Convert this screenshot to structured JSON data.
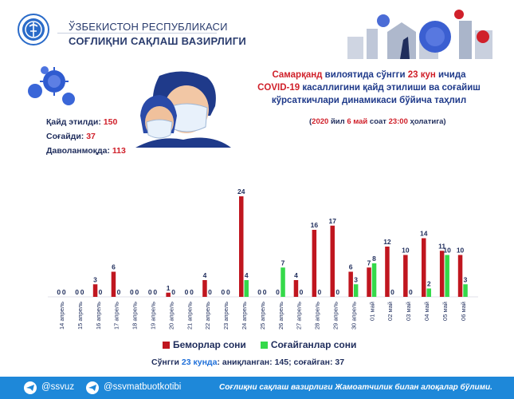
{
  "header": {
    "republic": "ЎЗБЕКИСТОН РЕСПУБЛИКАСИ",
    "ministry": "СОҒЛИҚНИ САҚЛАШ ВАЗИРЛИГИ",
    "emblem_icon": "ministry-emblem-icon",
    "art_icon": "coronavirus-city-illustration"
  },
  "stats": {
    "registered_label": "Қайд этилди:",
    "registered_value": "150",
    "recovered_label": "Соғайди:",
    "recovered_value": "37",
    "treated_label": "Даволанмоқда:",
    "treated_value": "113"
  },
  "title": {
    "region": "Самарқанд",
    "p1": " вилоятида сўнгги ",
    "days": "23 кун",
    "p2": " ичида",
    "covid": "COVID-19",
    "p3": " касаллигини қайд этилиши ва соғайиш",
    "line3": "кўрсаткичлари динамикаси бўйича таҳлил"
  },
  "date_line": {
    "open": "(",
    "year": "2020",
    "p1": " йил ",
    "day": "6 май",
    "p2": " соат ",
    "time": "23:00",
    "p3": " ҳолатига)"
  },
  "chart_data": {
    "type": "bar",
    "categories": [
      "14 апрель",
      "15 апрель",
      "16 апрель",
      "17 апрель",
      "18 апрель",
      "19 апрель",
      "20 апрель",
      "21 апрель",
      "22 апрель",
      "23 апрель",
      "24 апрель",
      "25 апрель",
      "26 апрель",
      "27 апрель",
      "28 апрель",
      "29 апрель",
      "30 апрель",
      "01 май",
      "02 май",
      "03 май",
      "04 май",
      "05 май",
      "06 май"
    ],
    "series": [
      {
        "name": "Беморлар сони",
        "color": "#c0161f",
        "values": [
          0,
          0,
          3,
          6,
          0,
          0,
          1,
          0,
          4,
          0,
          24,
          0,
          0,
          4,
          16,
          17,
          6,
          7,
          12,
          10,
          14,
          11,
          10
        ]
      },
      {
        "name": "Соғайганлар сони",
        "color": "#35d94a",
        "values": [
          0,
          0,
          0,
          0,
          0,
          0,
          0,
          0,
          0,
          0,
          4,
          0,
          7,
          0,
          0,
          0,
          3,
          8,
          0,
          0,
          2,
          10,
          3
        ]
      }
    ],
    "ylim": [
      0,
      24
    ]
  },
  "summary": {
    "p1": "Сўнгги ",
    "days": "23 кунда",
    "p2": ": аниқланган: 145; соғайган: 37"
  },
  "footer": {
    "handle1": "@ssvuz",
    "handle2": "@ssvmatbuotkotibi",
    "note": "Соғлиқни сақлаш вазирлиги Жамоатчилик билан алоқалар бўлими."
  }
}
